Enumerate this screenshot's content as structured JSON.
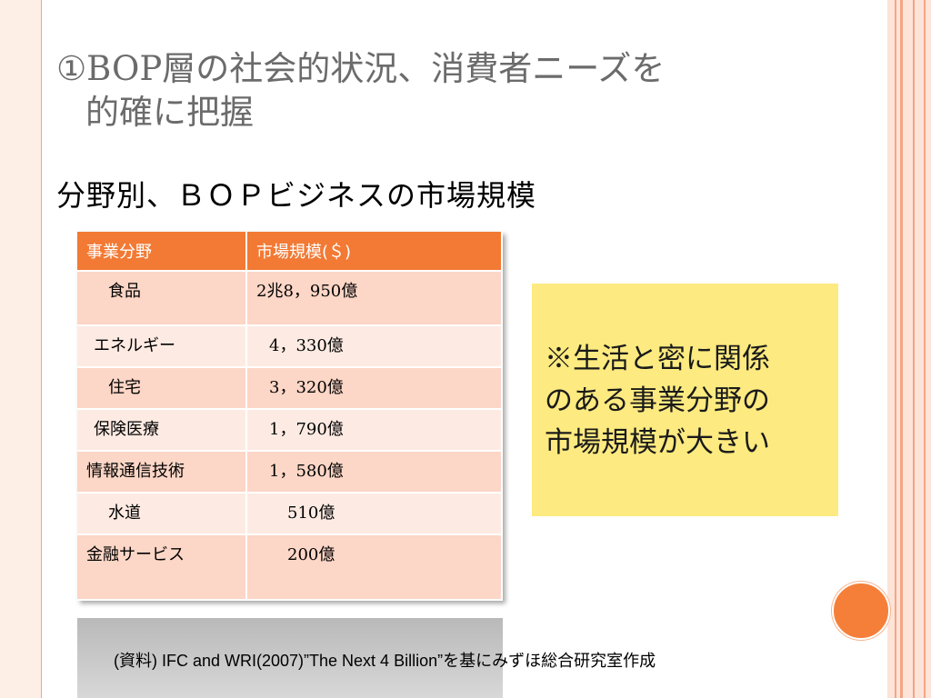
{
  "slide": {
    "title_line1": "①BOP層の社会的状況、消費者ニーズを",
    "title_line2": "的確に把握",
    "subtitle": "分野別、ＢＯＰビジネスの市場規模"
  },
  "table": {
    "headers": [
      "事業分野",
      "市場規模(＄)"
    ],
    "rows": [
      {
        "sector": "食品",
        "size": "2兆8，950億"
      },
      {
        "sector": "エネルギー",
        "size": "4，330億"
      },
      {
        "sector": "住宅",
        "size": "3，320億"
      },
      {
        "sector": "保険医療",
        "size": "1，790億"
      },
      {
        "sector": "情報通信技術",
        "size": "1，580億"
      },
      {
        "sector": "水道",
        "size": "510億"
      },
      {
        "sector": "金融サービス",
        "size": "200億"
      }
    ]
  },
  "note": {
    "text_line1": "※生活と密に関係",
    "text_line2": "のある事業分野の",
    "text_line3": "市場規模が大きい"
  },
  "source": {
    "text": "(資料)  IFC and WRI(2007)”The Next 4 Billion”を基にみずほ総合研究室作成"
  },
  "colors": {
    "header_bg": "#f27a35",
    "row_odd": "#fcd6c6",
    "row_even": "#fdebe3",
    "note_bg": "#fdea80",
    "accent_circle": "#f57f39"
  }
}
